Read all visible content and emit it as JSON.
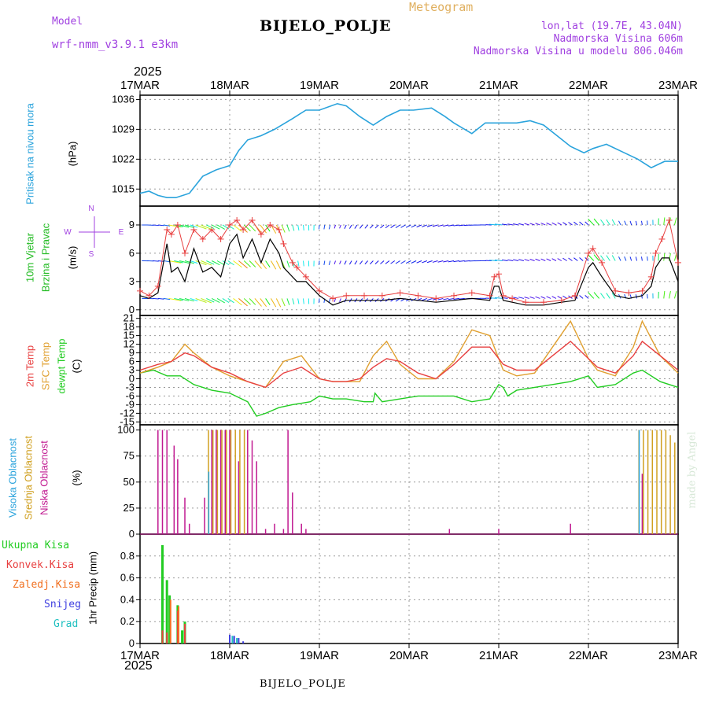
{
  "header": {
    "model_label": "Model",
    "model_name": "wrf-nmm_v3.9.1 e3km",
    "meteogram_label": "Meteogram",
    "station": "BIJELO_POLJE",
    "lonlat": "lon,lat (19.7E, 43.04N)",
    "altitude": "Nadmorska Visina 606m",
    "model_altitude": "Nadmorska Visina u modelu 806.046m",
    "footer_station": "BIJELO_POLJE",
    "credit": "made by Angel",
    "year_top": "2025",
    "year_bottom": "2025"
  },
  "colors": {
    "pressure": "#2aa3dc",
    "wind_label": "#22bb22",
    "temp2m": "#e84040",
    "sfc": "#e0a030",
    "dew": "#22cc22",
    "high_cloud": "#2aa3dc",
    "mid_cloud": "#d0a020",
    "low_cloud": "#c01890",
    "total_precip": "#22cc22",
    "conv_precip": "#e84040",
    "frozen_precip": "#f07020",
    "snow": "#4040e0",
    "hail": "#20c0c0",
    "title_purple": "#a040e0"
  },
  "chart_data": [
    {
      "type": "line",
      "panel": "pressure",
      "ylabel_main": "Pritisak na nivou mora",
      "ylabel_unit": "(hPa)",
      "x_categories": [
        "17MAR",
        "18MAR",
        "19MAR",
        "20MAR",
        "21MAR",
        "22MAR",
        "23MAR"
      ],
      "ylim": [
        1011,
        1037
      ],
      "yticks": [
        1015,
        1022,
        1029,
        1036
      ],
      "x_days": [
        0,
        0.1,
        0.2,
        0.3,
        0.4,
        0.55,
        0.7,
        0.85,
        1.0,
        1.1,
        1.2,
        1.35,
        1.5,
        1.7,
        1.85,
        2.0,
        2.2,
        2.3,
        2.45,
        2.6,
        2.75,
        2.9,
        3.05,
        3.25,
        3.4,
        3.5,
        3.7,
        3.85,
        4.0,
        4.2,
        4.35,
        4.5,
        4.65,
        4.8,
        4.95,
        5.05,
        5.2,
        5.4,
        5.55,
        5.7,
        5.85,
        6.0
      ],
      "values": [
        1014,
        1014.5,
        1013.5,
        1013,
        1013,
        1014,
        1018,
        1019.5,
        1020.5,
        1024,
        1026.5,
        1027.5,
        1029,
        1031.5,
        1033.5,
        1033.5,
        1035,
        1034.5,
        1032,
        1030,
        1032,
        1033.5,
        1033.5,
        1034,
        1032,
        1030.5,
        1028,
        1030.5,
        1030.5,
        1030.5,
        1031,
        1030,
        1027.5,
        1025,
        1023.5,
        1024.5,
        1025.5,
        1023.5,
        1022,
        1020,
        1021.5,
        1021.5
      ]
    },
    {
      "type": "line",
      "panel": "wind",
      "ylabel_main": "10m Vjetar",
      "ylabel_sub": "Brzina i Pravac",
      "ylabel_unit": "(m/s)",
      "compass": {
        "north": "N",
        "south": "S",
        "east": "E",
        "west": "W"
      },
      "ylim": [
        -0.6,
        11
      ],
      "yticks": [
        0,
        3,
        6,
        9
      ],
      "series": [
        {
          "name": "speed",
          "x_days": [
            0,
            0.1,
            0.2,
            0.3,
            0.35,
            0.42,
            0.5,
            0.6,
            0.7,
            0.8,
            0.9,
            1.0,
            1.08,
            1.15,
            1.25,
            1.35,
            1.45,
            1.55,
            1.6,
            1.7,
            1.75,
            1.85,
            2.0,
            2.15,
            2.3,
            2.5,
            2.7,
            2.9,
            3.1,
            3.3,
            3.5,
            3.7,
            3.9,
            3.95,
            4.0,
            4.05,
            4.15,
            4.3,
            4.5,
            4.7,
            4.85,
            5.0,
            5.05,
            5.15,
            5.3,
            5.45,
            5.6,
            5.7,
            5.75,
            5.82,
            5.9,
            6.0
          ],
          "values": [
            1.5,
            1.2,
            1.8,
            7.0,
            4.0,
            4.5,
            3.0,
            6.5,
            4.0,
            4.5,
            3.5,
            7.0,
            8.0,
            5.5,
            7.5,
            5.0,
            7.5,
            6.0,
            4.5,
            3.5,
            3.0,
            3.0,
            1.5,
            0.5,
            1.0,
            1.0,
            1.0,
            1.2,
            1.0,
            0.8,
            1.0,
            1.2,
            1.0,
            2.5,
            2.5,
            1.0,
            0.8,
            0.5,
            0.5,
            0.8,
            1.0,
            4.5,
            5.0,
            3.5,
            1.5,
            1.2,
            1.5,
            2.5,
            4.5,
            5.5,
            5.5,
            3.0
          ]
        },
        {
          "name": "gust",
          "x_days": [
            0,
            0.1,
            0.2,
            0.3,
            0.35,
            0.42,
            0.5,
            0.6,
            0.7,
            0.8,
            0.9,
            1.0,
            1.08,
            1.15,
            1.25,
            1.35,
            1.45,
            1.55,
            1.6,
            1.7,
            1.75,
            1.85,
            2.0,
            2.15,
            2.3,
            2.5,
            2.7,
            2.9,
            3.1,
            3.3,
            3.5,
            3.7,
            3.9,
            3.95,
            4.0,
            4.05,
            4.15,
            4.3,
            4.5,
            4.7,
            4.85,
            5.0,
            5.05,
            5.15,
            5.3,
            5.45,
            5.6,
            5.7,
            5.75,
            5.82,
            5.9,
            6.0
          ],
          "values": [
            2.0,
            1.5,
            2.5,
            8.5,
            8.0,
            9.0,
            6.0,
            8.5,
            7.5,
            8.5,
            7.5,
            9.0,
            9.5,
            8.5,
            9.5,
            8.0,
            9.0,
            8.5,
            7.0,
            5.0,
            4.5,
            3.5,
            2.0,
            1.2,
            1.5,
            1.5,
            1.5,
            1.8,
            1.5,
            1.2,
            1.5,
            1.8,
            1.5,
            3.5,
            3.8,
            1.5,
            1.2,
            0.8,
            0.8,
            1.0,
            1.5,
            6.0,
            6.5,
            5.0,
            2.0,
            1.8,
            2.0,
            3.5,
            6.0,
            7.5,
            9.5,
            5.0
          ]
        }
      ]
    },
    {
      "type": "line",
      "panel": "temperature",
      "ylabel_1": "2m Temp",
      "ylabel_2": "SFC Temp",
      "ylabel_3": "dewpt Temp",
      "ylabel_unit": "(C)",
      "ylim": [
        -16,
        22
      ],
      "yticks": [
        21,
        18,
        15,
        12,
        9,
        6,
        3,
        0,
        -3,
        -6,
        -9,
        -12,
        -15
      ],
      "series": [
        {
          "name": "2m Temp",
          "x_days": [
            0,
            0.2,
            0.35,
            0.5,
            0.6,
            0.8,
            1.0,
            1.2,
            1.4,
            1.6,
            1.8,
            2.0,
            2.15,
            2.3,
            2.45,
            2.6,
            2.75,
            2.9,
            3.1,
            3.3,
            3.5,
            3.7,
            3.9,
            4.05,
            4.2,
            4.4,
            4.6,
            4.8,
            5.0,
            5.1,
            5.3,
            5.5,
            5.6,
            5.8,
            6.0
          ],
          "values": [
            3,
            5,
            6,
            9,
            8,
            4,
            2,
            -1,
            -3,
            2,
            4,
            0,
            -1,
            -1,
            0,
            4,
            7,
            6,
            2,
            0,
            5,
            11,
            11,
            5,
            3,
            3,
            8,
            13,
            7,
            4,
            2,
            8,
            13,
            8,
            3
          ]
        },
        {
          "name": "SFC Temp",
          "x_days": [
            0,
            0.2,
            0.35,
            0.5,
            0.6,
            0.8,
            1.0,
            1.2,
            1.4,
            1.6,
            1.8,
            2.0,
            2.15,
            2.3,
            2.45,
            2.6,
            2.75,
            2.9,
            3.1,
            3.3,
            3.5,
            3.7,
            3.9,
            4.05,
            4.2,
            4.4,
            4.6,
            4.8,
            5.0,
            5.1,
            5.3,
            5.5,
            5.6,
            5.8,
            6.0
          ],
          "values": [
            2,
            4,
            6,
            12,
            9,
            4,
            1,
            -1,
            -3,
            6,
            8,
            0,
            -1,
            -1,
            -1,
            8,
            13,
            5,
            0,
            0,
            6,
            17,
            15,
            3,
            1,
            2,
            11,
            20,
            7,
            3,
            1,
            11,
            20,
            8,
            2
          ]
        },
        {
          "name": "dewpt Temp",
          "x_days": [
            0,
            0.15,
            0.3,
            0.45,
            0.6,
            0.8,
            1.0,
            1.2,
            1.3,
            1.4,
            1.55,
            1.7,
            1.9,
            2.0,
            2.15,
            2.3,
            2.5,
            2.6,
            2.62,
            2.7,
            2.9,
            3.1,
            3.3,
            3.5,
            3.7,
            3.9,
            4.0,
            4.05,
            4.1,
            4.2,
            4.4,
            4.6,
            4.8,
            5.0,
            5.1,
            5.3,
            5.5,
            5.6,
            5.8,
            6.0
          ],
          "values": [
            2,
            3,
            1,
            1,
            -2,
            -4,
            -5,
            -8,
            -13,
            -12,
            -10,
            -9,
            -8,
            -6,
            -7,
            -7,
            -8,
            -8,
            -5,
            -8,
            -7,
            -6,
            -6,
            -6,
            -8,
            -7,
            -2,
            -3,
            -6,
            -4,
            -3,
            -2,
            -1,
            1,
            -3,
            -2,
            2,
            3,
            -1,
            -3
          ]
        }
      ]
    },
    {
      "type": "bar",
      "panel": "cloud",
      "ylabel_1": "Visoka Oblacnost",
      "ylabel_2": "Srednja Oblacnost",
      "ylabel_3": "Niska Oblacnost",
      "ylabel_unit": "(%)",
      "ylim": [
        0,
        105
      ],
      "yticks": [
        0,
        25,
        50,
        75,
        100
      ],
      "series": [
        {
          "name": "Niska Oblacnost",
          "x_days": [
            0.2,
            0.25,
            0.3,
            0.38,
            0.42,
            0.5,
            0.55,
            0.72,
            0.8,
            0.85,
            0.9,
            0.95,
            1.0,
            1.1,
            1.2,
            1.25,
            1.3,
            1.4,
            1.5,
            1.6,
            1.65,
            1.7,
            1.8,
            1.85,
            3.45,
            4.0,
            4.8,
            5.6
          ],
          "values": [
            100,
            100,
            100,
            85,
            72,
            35,
            10,
            35,
            100,
            100,
            100,
            100,
            100,
            70,
            100,
            90,
            70,
            5,
            10,
            5,
            100,
            40,
            10,
            5,
            5,
            5,
            10,
            58
          ]
        },
        {
          "name": "Srednja Oblacnost",
          "x_days": [
            0.75,
            0.8,
            0.85,
            0.9,
            0.95,
            1.0,
            1.05,
            1.1,
            1.15,
            5.55,
            5.6,
            5.65,
            5.7,
            5.75,
            5.8,
            5.85,
            5.9,
            5.95
          ],
          "values": [
            100,
            100,
            100,
            100,
            100,
            100,
            100,
            100,
            100,
            100,
            100,
            100,
            100,
            100,
            100,
            100,
            95,
            88
          ]
        },
        {
          "name": "Visoka Oblacnost",
          "x_days": [
            0.74,
            5.54
          ],
          "values": [
            60,
            100
          ]
        }
      ]
    },
    {
      "type": "bar",
      "panel": "precip",
      "ylabel_1": "Ukupna Kisa",
      "ylabel_2": "Konvek.Kisa",
      "ylabel_3": "Zaledj.Kisa",
      "ylabel_4": "Snijeg",
      "ylabel_5": "Grad",
      "ylabel_unit": "1hr Precip (mm)",
      "ylim": [
        0,
        1.0
      ],
      "yticks": [
        0,
        0.2,
        0.4,
        0.6,
        0.8
      ],
      "series": [
        {
          "name": "Ukupna Kisa",
          "x_days": [
            0.25,
            0.3,
            0.33,
            0.42,
            0.47,
            0.5
          ],
          "values": [
            0.9,
            0.58,
            0.44,
            0.35,
            0.12,
            0.2
          ]
        },
        {
          "name": "Konvek.Kisa",
          "x_days": [
            0.25,
            0.3,
            0.42,
            0.5
          ],
          "values": [
            0.12,
            0.1,
            0.3,
            0.18
          ]
        },
        {
          "name": "Zaledj.Kisa",
          "x_days": [
            0.34,
            0.43
          ],
          "values": [
            0.4,
            0.34
          ]
        },
        {
          "name": "Snijeg",
          "x_days": [
            1.0,
            1.05,
            1.1,
            1.15
          ],
          "values": [
            0.08,
            0.07,
            0.05,
            0.02
          ]
        },
        {
          "name": "Grad",
          "x_days": [
            1.03,
            1.08
          ],
          "values": [
            0.07,
            0.05
          ]
        }
      ]
    }
  ]
}
